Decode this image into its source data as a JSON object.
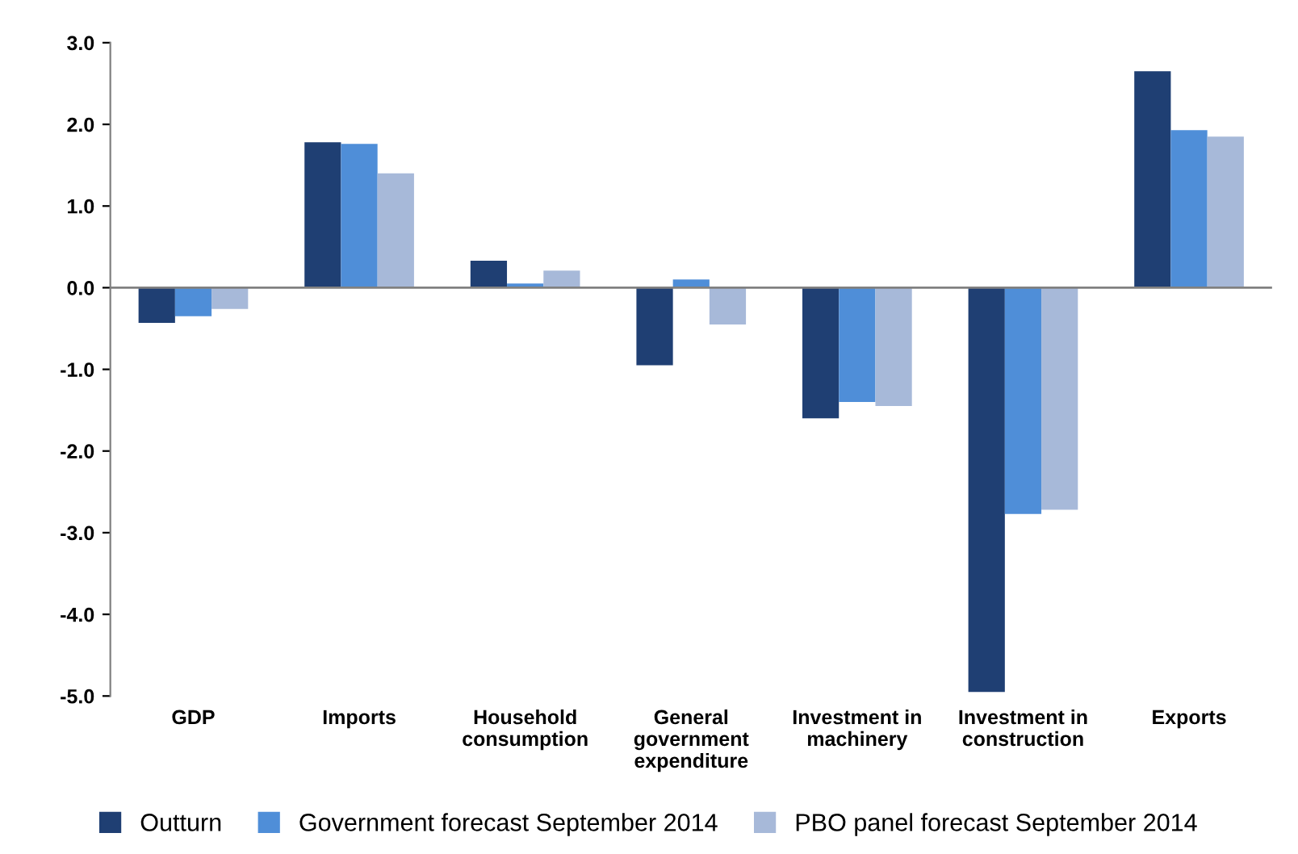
{
  "chart_data": {
    "type": "bar",
    "categories": [
      "GDP",
      "Imports",
      "Household\nconsumption",
      "General\ngovernment\nexpenditure",
      "Investment in\nmachinery",
      "Investment in\nconstruction",
      "Exports"
    ],
    "series": [
      {
        "name": "Outturn",
        "color": "#1f3f73",
        "values": [
          -0.43,
          1.78,
          0.33,
          -0.95,
          -1.6,
          -4.95,
          2.65
        ]
      },
      {
        "name": "Government forecast September 2014",
        "color": "#4f8ed8",
        "values": [
          -0.35,
          1.76,
          0.05,
          0.1,
          -1.4,
          -2.77,
          1.93
        ]
      },
      {
        "name": "PBO panel forecast September 2014",
        "color": "#a7b9d9",
        "values": [
          -0.26,
          1.4,
          0.21,
          -0.45,
          -1.45,
          -2.72,
          1.85
        ]
      }
    ],
    "ylim": [
      -5.0,
      3.0
    ],
    "yticks": [
      {
        "value": -5,
        "label": "-5.0"
      },
      {
        "value": -4,
        "label": "-4.0"
      },
      {
        "value": -3,
        "label": "-3.0"
      },
      {
        "value": -2,
        "label": "-2.0"
      },
      {
        "value": -1,
        "label": "-1.0"
      },
      {
        "value": 0,
        "label": "0.0"
      },
      {
        "value": 1,
        "label": "1.0"
      },
      {
        "value": 2,
        "label": "2.0"
      },
      {
        "value": 3,
        "label": "3.0"
      }
    ],
    "ref_lines": [
      {
        "axis": "y",
        "value": 0,
        "color": "#808080"
      }
    ],
    "grid": false,
    "legend": "bottom"
  }
}
